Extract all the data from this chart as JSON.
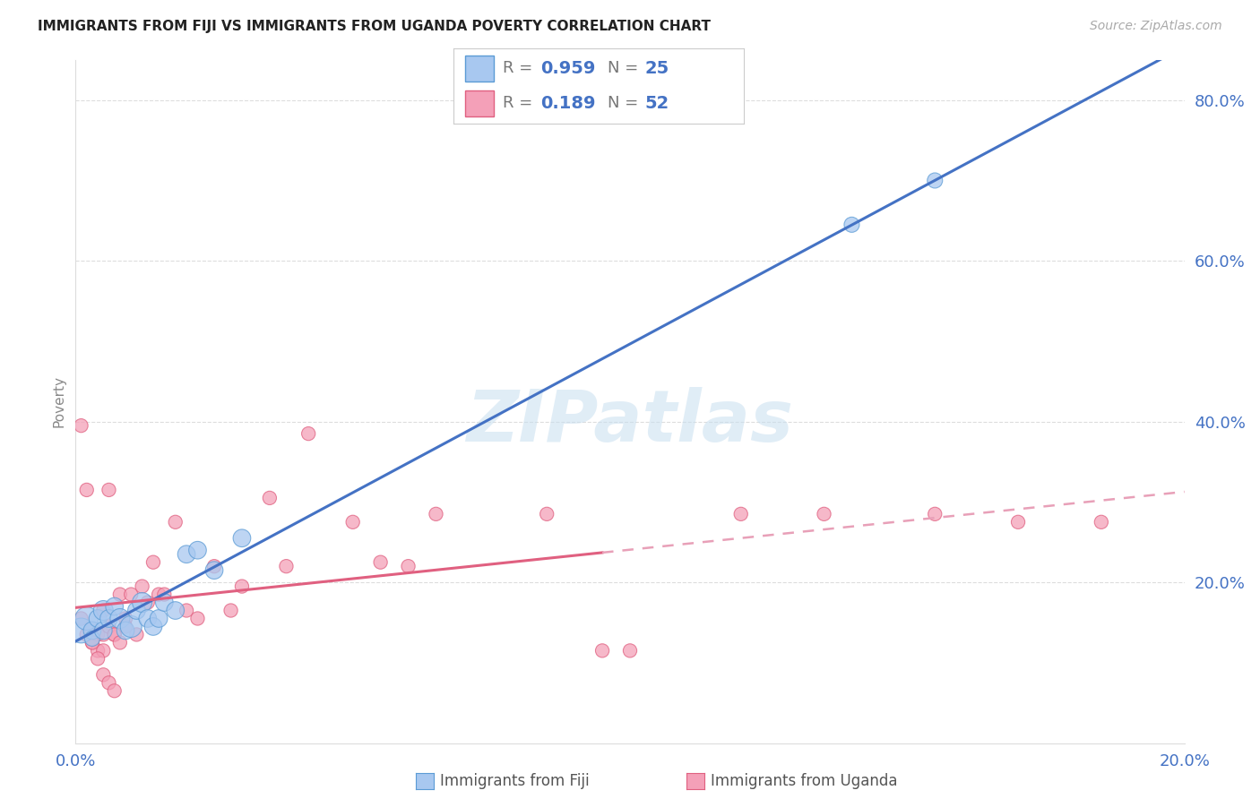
{
  "title": "IMMIGRANTS FROM FIJI VS IMMIGRANTS FROM UGANDA POVERTY CORRELATION CHART",
  "source": "Source: ZipAtlas.com",
  "ylabel_label": "Poverty",
  "xlim": [
    0.0,
    0.2
  ],
  "ylim": [
    0.0,
    0.85
  ],
  "x_ticks": [
    0.0,
    0.2
  ],
  "x_tick_labels": [
    "0.0%",
    "20.0%"
  ],
  "y_ticks": [
    0.2,
    0.4,
    0.6,
    0.8
  ],
  "y_tick_labels": [
    "20.0%",
    "40.0%",
    "60.0%",
    "80.0%"
  ],
  "fiji_color": "#a8c8f0",
  "uganda_color": "#f4a0b8",
  "fiji_edge_color": "#5b9bd5",
  "uganda_edge_color": "#e06080",
  "fiji_line_color": "#4472c4",
  "uganda_line_solid_color": "#e06080",
  "uganda_line_dashed_color": "#e8a0b8",
  "fiji_R": 0.959,
  "fiji_N": 25,
  "uganda_R": 0.189,
  "uganda_N": 52,
  "fiji_scatter_x": [
    0.001,
    0.002,
    0.003,
    0.003,
    0.004,
    0.005,
    0.005,
    0.006,
    0.007,
    0.008,
    0.009,
    0.01,
    0.011,
    0.012,
    0.013,
    0.014,
    0.015,
    0.016,
    0.018,
    0.02,
    0.022,
    0.025,
    0.03,
    0.14,
    0.155
  ],
  "fiji_scatter_y": [
    0.14,
    0.155,
    0.14,
    0.13,
    0.155,
    0.165,
    0.14,
    0.155,
    0.17,
    0.155,
    0.14,
    0.145,
    0.165,
    0.175,
    0.155,
    0.145,
    0.155,
    0.175,
    0.165,
    0.235,
    0.24,
    0.215,
    0.255,
    0.645,
    0.7
  ],
  "fiji_scatter_size": [
    400,
    350,
    200,
    150,
    200,
    250,
    200,
    200,
    200,
    250,
    200,
    300,
    200,
    250,
    200,
    200,
    200,
    200,
    200,
    200,
    200,
    200,
    200,
    150,
    150
  ],
  "uganda_scatter_x": [
    0.001,
    0.001,
    0.002,
    0.002,
    0.003,
    0.003,
    0.004,
    0.004,
    0.005,
    0.005,
    0.005,
    0.006,
    0.006,
    0.007,
    0.007,
    0.008,
    0.008,
    0.009,
    0.009,
    0.01,
    0.011,
    0.012,
    0.013,
    0.014,
    0.015,
    0.016,
    0.018,
    0.02,
    0.022,
    0.025,
    0.028,
    0.03,
    0.035,
    0.038,
    0.042,
    0.05,
    0.055,
    0.06,
    0.065,
    0.085,
    0.095,
    0.1,
    0.12,
    0.135,
    0.155,
    0.17,
    0.185,
    0.003,
    0.004,
    0.005,
    0.006,
    0.007
  ],
  "uganda_scatter_y": [
    0.155,
    0.395,
    0.135,
    0.315,
    0.14,
    0.125,
    0.115,
    0.135,
    0.165,
    0.135,
    0.115,
    0.145,
    0.315,
    0.135,
    0.135,
    0.125,
    0.185,
    0.155,
    0.145,
    0.185,
    0.135,
    0.195,
    0.175,
    0.225,
    0.185,
    0.185,
    0.275,
    0.165,
    0.155,
    0.22,
    0.165,
    0.195,
    0.305,
    0.22,
    0.385,
    0.275,
    0.225,
    0.22,
    0.285,
    0.285,
    0.115,
    0.115,
    0.285,
    0.285,
    0.285,
    0.275,
    0.275,
    0.125,
    0.105,
    0.085,
    0.075,
    0.065
  ],
  "uganda_scatter_size": [
    120,
    120,
    120,
    120,
    120,
    120,
    120,
    120,
    120,
    120,
    120,
    120,
    120,
    120,
    120,
    120,
    120,
    120,
    120,
    120,
    120,
    120,
    120,
    120,
    120,
    120,
    120,
    120,
    120,
    120,
    120,
    120,
    120,
    120,
    120,
    120,
    120,
    120,
    120,
    120,
    120,
    120,
    120,
    120,
    120,
    120,
    120,
    120,
    120,
    120,
    120,
    120
  ],
  "watermark": "ZIPatlas",
  "background_color": "#ffffff",
  "grid_color": "#dddddd",
  "tick_color": "#4472c4",
  "label_color": "#888888"
}
